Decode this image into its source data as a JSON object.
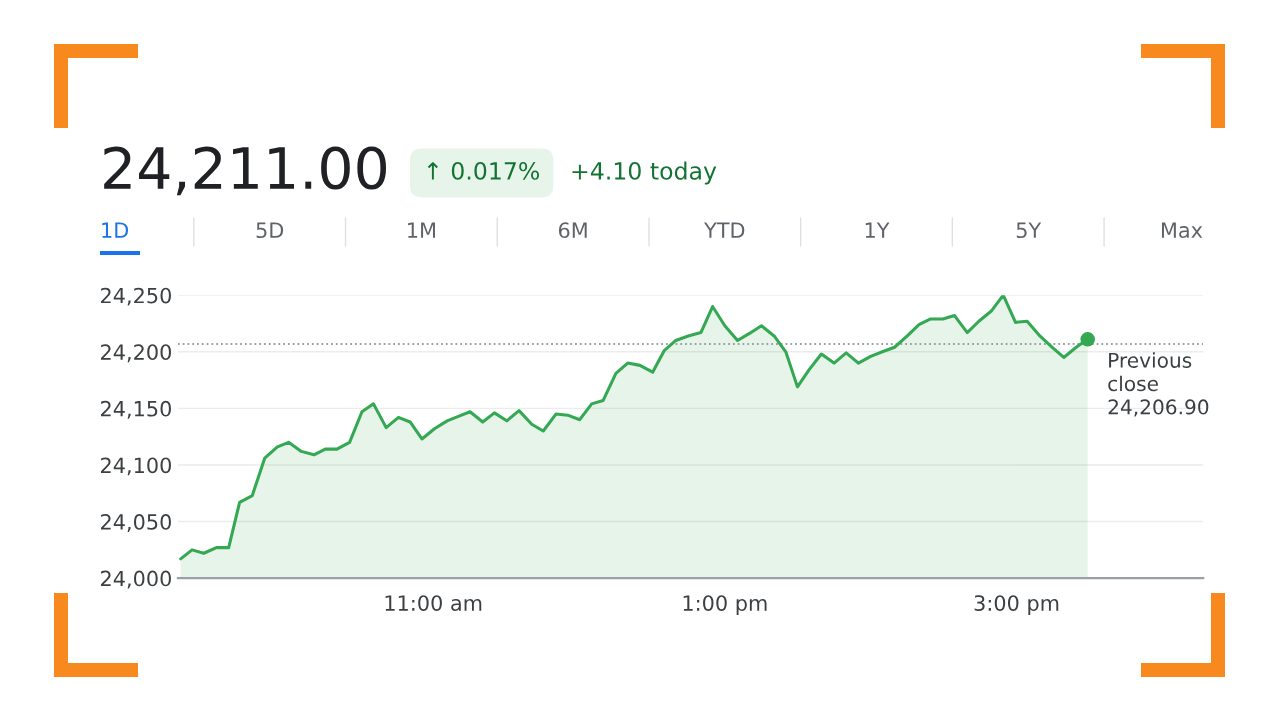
{
  "chart_data": {
    "type": "area",
    "title": "24,211.00",
    "annotations": [
      "↑ 0.017%",
      "+4.10 today",
      "1D",
      "5D",
      "1M",
      "6M",
      "YTD",
      "1Y",
      "5Y",
      "Max"
    ],
    "series": [
      {
        "color": "#34a853",
        "x": [
          9.269,
          9.347,
          9.427,
          9.514,
          9.598,
          9.673,
          9.76,
          9.845,
          9.932,
          10.009,
          10.096,
          10.183,
          10.26,
          10.34,
          10.427,
          10.512,
          10.591,
          10.678,
          10.762,
          10.842,
          10.923,
          11.009,
          11.096,
          11.173,
          11.253,
          11.34,
          11.42,
          11.505,
          11.589,
          11.676,
          11.755,
          11.842,
          11.923,
          12.005,
          12.087,
          12.166,
          12.253,
          12.334,
          12.418,
          12.505,
          12.584,
          12.664,
          12.749,
          12.836,
          12.916,
          13.0,
          13.087,
          13.166,
          13.251,
          13.338,
          13.418,
          13.498,
          13.577,
          13.662,
          13.749,
          13.832,
          13.916,
          14.0,
          14.08,
          14.164,
          14.251,
          14.331,
          14.411,
          14.495,
          14.575,
          14.662,
          14.742,
          14.827,
          14.909,
          14.993,
          15.073,
          15.16,
          15.245,
          15.324,
          15.409,
          15.488
        ],
        "values": [
          24017,
          24025,
          24022,
          24027,
          24027,
          24067,
          24073,
          24106,
          24116,
          24120,
          24112,
          24109,
          24114,
          24114,
          24120,
          24147,
          24154,
          24133,
          24142,
          24138,
          24123,
          24132,
          24139,
          24143,
          24147,
          24138,
          24146,
          24139,
          24148,
          24136,
          24130,
          24145,
          24144,
          24140,
          24154,
          24157,
          24181,
          24190,
          24188,
          24182,
          24201,
          24210,
          24214,
          24217,
          24240,
          24223,
          24210,
          24216,
          24223,
          24214,
          24200,
          24169,
          24184,
          24198,
          24190,
          24199,
          24190,
          24196,
          24200,
          24204,
          24214,
          24224,
          24229,
          24229,
          24232,
          24217,
          24227,
          24236,
          24250,
          24226,
          24227,
          24214,
          24204,
          24195,
          24204,
          24211
        ]
      },
      {
        "type": "scatter",
        "color": "#34a853",
        "marker": "circle",
        "x": [
          15.488
        ],
        "values": [
          24211
        ]
      }
    ],
    "xlim": [
      9.25,
      16.28
    ],
    "xticks": [
      {
        "value": 11,
        "label": "11:00 am"
      },
      {
        "value": 13,
        "label": "1:00 pm"
      },
      {
        "value": 15,
        "label": "3:00 pm"
      }
    ],
    "ylim": [
      24000,
      24250
    ],
    "yticks": [
      {
        "value": 24000,
        "label": "24,000"
      },
      {
        "value": 24050,
        "label": "24,050"
      },
      {
        "value": 24100,
        "label": "24,100"
      },
      {
        "value": 24150,
        "label": "24,150"
      },
      {
        "value": 24200,
        "label": "24,200"
      },
      {
        "value": 24250,
        "label": "24,250"
      }
    ],
    "grid": "y",
    "ref_lines": [
      {
        "axis": "y",
        "value": 24206.9,
        "label": "Previous\nclose\n24,206.90",
        "color": "#9aa0a6",
        "line_style": "dotted"
      }
    ]
  }
}
